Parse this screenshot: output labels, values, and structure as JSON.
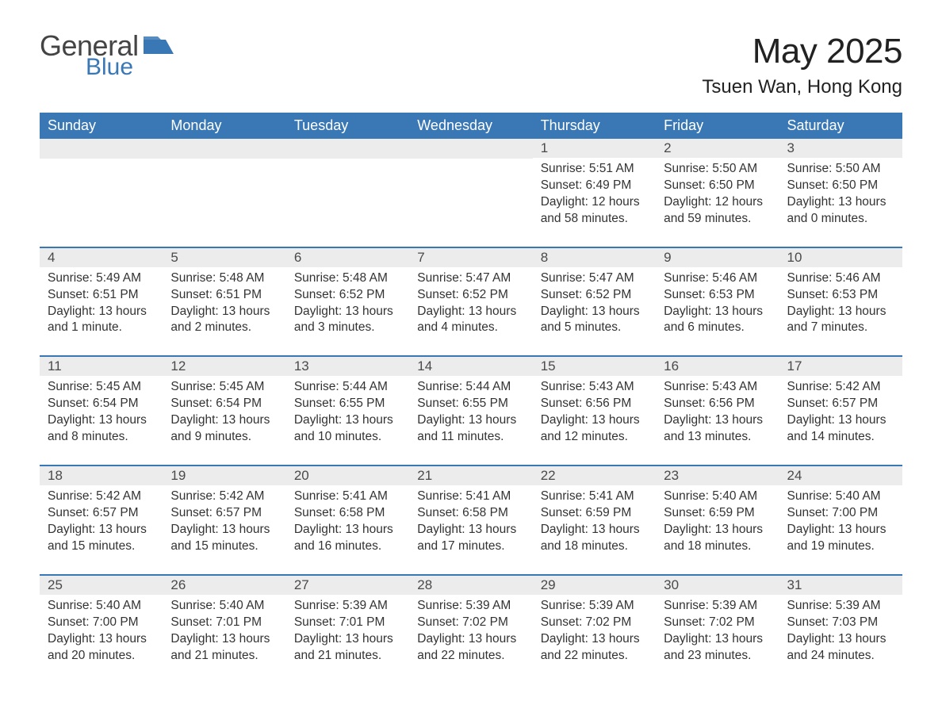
{
  "brand": {
    "word1": "General",
    "word2": "Blue",
    "accent_color": "#3a78b5",
    "text_color": "#444444"
  },
  "title": "May 2025",
  "location": "Tsuen Wan, Hong Kong",
  "colors": {
    "header_bg": "#3a78b5",
    "header_text": "#ffffff",
    "daynum_bg": "#ececec",
    "body_text": "#333333",
    "page_bg": "#ffffff",
    "row_separator": "#3a78b5"
  },
  "typography": {
    "title_fontsize": 44,
    "location_fontsize": 24,
    "dayheader_fontsize": 18,
    "daynum_fontsize": 17,
    "body_fontsize": 15.5
  },
  "day_labels": [
    "Sunday",
    "Monday",
    "Tuesday",
    "Wednesday",
    "Thursday",
    "Friday",
    "Saturday"
  ],
  "weeks": [
    [
      null,
      null,
      null,
      null,
      {
        "n": "1",
        "sunrise": "5:51 AM",
        "sunset": "6:49 PM",
        "daylight": "12 hours and 58 minutes."
      },
      {
        "n": "2",
        "sunrise": "5:50 AM",
        "sunset": "6:50 PM",
        "daylight": "12 hours and 59 minutes."
      },
      {
        "n": "3",
        "sunrise": "5:50 AM",
        "sunset": "6:50 PM",
        "daylight": "13 hours and 0 minutes."
      }
    ],
    [
      {
        "n": "4",
        "sunrise": "5:49 AM",
        "sunset": "6:51 PM",
        "daylight": "13 hours and 1 minute."
      },
      {
        "n": "5",
        "sunrise": "5:48 AM",
        "sunset": "6:51 PM",
        "daylight": "13 hours and 2 minutes."
      },
      {
        "n": "6",
        "sunrise": "5:48 AM",
        "sunset": "6:52 PM",
        "daylight": "13 hours and 3 minutes."
      },
      {
        "n": "7",
        "sunrise": "5:47 AM",
        "sunset": "6:52 PM",
        "daylight": "13 hours and 4 minutes."
      },
      {
        "n": "8",
        "sunrise": "5:47 AM",
        "sunset": "6:52 PM",
        "daylight": "13 hours and 5 minutes."
      },
      {
        "n": "9",
        "sunrise": "5:46 AM",
        "sunset": "6:53 PM",
        "daylight": "13 hours and 6 minutes."
      },
      {
        "n": "10",
        "sunrise": "5:46 AM",
        "sunset": "6:53 PM",
        "daylight": "13 hours and 7 minutes."
      }
    ],
    [
      {
        "n": "11",
        "sunrise": "5:45 AM",
        "sunset": "6:54 PM",
        "daylight": "13 hours and 8 minutes."
      },
      {
        "n": "12",
        "sunrise": "5:45 AM",
        "sunset": "6:54 PM",
        "daylight": "13 hours and 9 minutes."
      },
      {
        "n": "13",
        "sunrise": "5:44 AM",
        "sunset": "6:55 PM",
        "daylight": "13 hours and 10 minutes."
      },
      {
        "n": "14",
        "sunrise": "5:44 AM",
        "sunset": "6:55 PM",
        "daylight": "13 hours and 11 minutes."
      },
      {
        "n": "15",
        "sunrise": "5:43 AM",
        "sunset": "6:56 PM",
        "daylight": "13 hours and 12 minutes."
      },
      {
        "n": "16",
        "sunrise": "5:43 AM",
        "sunset": "6:56 PM",
        "daylight": "13 hours and 13 minutes."
      },
      {
        "n": "17",
        "sunrise": "5:42 AM",
        "sunset": "6:57 PM",
        "daylight": "13 hours and 14 minutes."
      }
    ],
    [
      {
        "n": "18",
        "sunrise": "5:42 AM",
        "sunset": "6:57 PM",
        "daylight": "13 hours and 15 minutes."
      },
      {
        "n": "19",
        "sunrise": "5:42 AM",
        "sunset": "6:57 PM",
        "daylight": "13 hours and 15 minutes."
      },
      {
        "n": "20",
        "sunrise": "5:41 AM",
        "sunset": "6:58 PM",
        "daylight": "13 hours and 16 minutes."
      },
      {
        "n": "21",
        "sunrise": "5:41 AM",
        "sunset": "6:58 PM",
        "daylight": "13 hours and 17 minutes."
      },
      {
        "n": "22",
        "sunrise": "5:41 AM",
        "sunset": "6:59 PM",
        "daylight": "13 hours and 18 minutes."
      },
      {
        "n": "23",
        "sunrise": "5:40 AM",
        "sunset": "6:59 PM",
        "daylight": "13 hours and 18 minutes."
      },
      {
        "n": "24",
        "sunrise": "5:40 AM",
        "sunset": "7:00 PM",
        "daylight": "13 hours and 19 minutes."
      }
    ],
    [
      {
        "n": "25",
        "sunrise": "5:40 AM",
        "sunset": "7:00 PM",
        "daylight": "13 hours and 20 minutes."
      },
      {
        "n": "26",
        "sunrise": "5:40 AM",
        "sunset": "7:01 PM",
        "daylight": "13 hours and 21 minutes."
      },
      {
        "n": "27",
        "sunrise": "5:39 AM",
        "sunset": "7:01 PM",
        "daylight": "13 hours and 21 minutes."
      },
      {
        "n": "28",
        "sunrise": "5:39 AM",
        "sunset": "7:02 PM",
        "daylight": "13 hours and 22 minutes."
      },
      {
        "n": "29",
        "sunrise": "5:39 AM",
        "sunset": "7:02 PM",
        "daylight": "13 hours and 22 minutes."
      },
      {
        "n": "30",
        "sunrise": "5:39 AM",
        "sunset": "7:02 PM",
        "daylight": "13 hours and 23 minutes."
      },
      {
        "n": "31",
        "sunrise": "5:39 AM",
        "sunset": "7:03 PM",
        "daylight": "13 hours and 24 minutes."
      }
    ]
  ],
  "labels": {
    "sunrise_prefix": "Sunrise: ",
    "sunset_prefix": "Sunset: ",
    "daylight_prefix": "Daylight: "
  }
}
